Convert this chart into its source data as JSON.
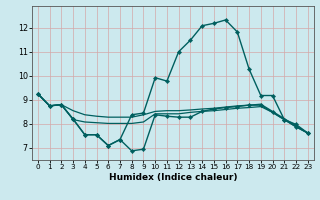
{
  "xlabel": "Humidex (Indice chaleur)",
  "background_color": "#cce9ee",
  "grid_color": "#d4a8a8",
  "line_color": "#005f5f",
  "xlim": [
    -0.5,
    23.5
  ],
  "ylim": [
    6.5,
    12.9
  ],
  "xticks": [
    0,
    1,
    2,
    3,
    4,
    5,
    6,
    7,
    8,
    9,
    10,
    11,
    12,
    13,
    14,
    15,
    16,
    17,
    18,
    19,
    20,
    21,
    22,
    23
  ],
  "yticks": [
    7,
    8,
    9,
    10,
    11,
    12
  ],
  "series": [
    {
      "x": [
        0,
        1,
        2,
        3,
        4,
        5,
        6,
        7,
        8,
        9,
        10,
        11,
        12,
        13,
        14,
        15,
        16,
        17,
        18,
        19,
        20,
        21,
        22,
        23
      ],
      "y": [
        9.25,
        8.75,
        8.8,
        8.2,
        7.55,
        7.55,
        7.1,
        7.35,
        6.88,
        6.95,
        8.38,
        8.32,
        8.28,
        8.28,
        8.52,
        8.62,
        8.68,
        8.72,
        8.78,
        8.78,
        8.48,
        8.18,
        7.88,
        7.62
      ],
      "marker": true,
      "markersize": 2.2,
      "linewidth": 1.0
    },
    {
      "x": [
        0,
        1,
        2,
        3,
        4,
        5,
        6,
        7,
        8,
        9,
        10,
        11,
        12,
        13,
        14,
        15,
        16,
        17,
        18,
        19,
        20,
        21,
        22,
        23
      ],
      "y": [
        9.25,
        8.75,
        8.8,
        8.2,
        7.55,
        7.55,
        7.1,
        7.35,
        8.38,
        8.45,
        9.92,
        9.78,
        11.0,
        11.48,
        12.08,
        12.18,
        12.32,
        11.82,
        10.28,
        9.18,
        9.18,
        8.18,
        7.98,
        7.62
      ],
      "marker": true,
      "markersize": 2.2,
      "linewidth": 1.0
    },
    {
      "x": [
        0,
        1,
        2,
        3,
        4,
        5,
        6,
        7,
        8,
        9,
        10,
        11,
        12,
        13,
        14,
        15,
        16,
        17,
        18,
        19,
        20,
        21,
        22,
        23
      ],
      "y": [
        9.25,
        8.75,
        8.8,
        8.55,
        8.38,
        8.32,
        8.28,
        8.28,
        8.28,
        8.38,
        8.52,
        8.55,
        8.55,
        8.58,
        8.62,
        8.65,
        8.7,
        8.75,
        8.78,
        8.82,
        8.52,
        8.22,
        7.92,
        7.62
      ],
      "marker": false,
      "markersize": 0,
      "linewidth": 0.9
    },
    {
      "x": [
        0,
        1,
        2,
        3,
        4,
        5,
        6,
        7,
        8,
        9,
        10,
        11,
        12,
        13,
        14,
        15,
        16,
        17,
        18,
        19,
        20,
        21,
        22,
        23
      ],
      "y": [
        9.25,
        8.75,
        8.8,
        8.18,
        8.08,
        8.05,
        8.02,
        8.02,
        8.02,
        8.08,
        8.42,
        8.42,
        8.42,
        8.48,
        8.52,
        8.55,
        8.6,
        8.65,
        8.68,
        8.72,
        8.48,
        8.18,
        7.88,
        7.62
      ],
      "marker": false,
      "markersize": 0,
      "linewidth": 0.9
    }
  ]
}
